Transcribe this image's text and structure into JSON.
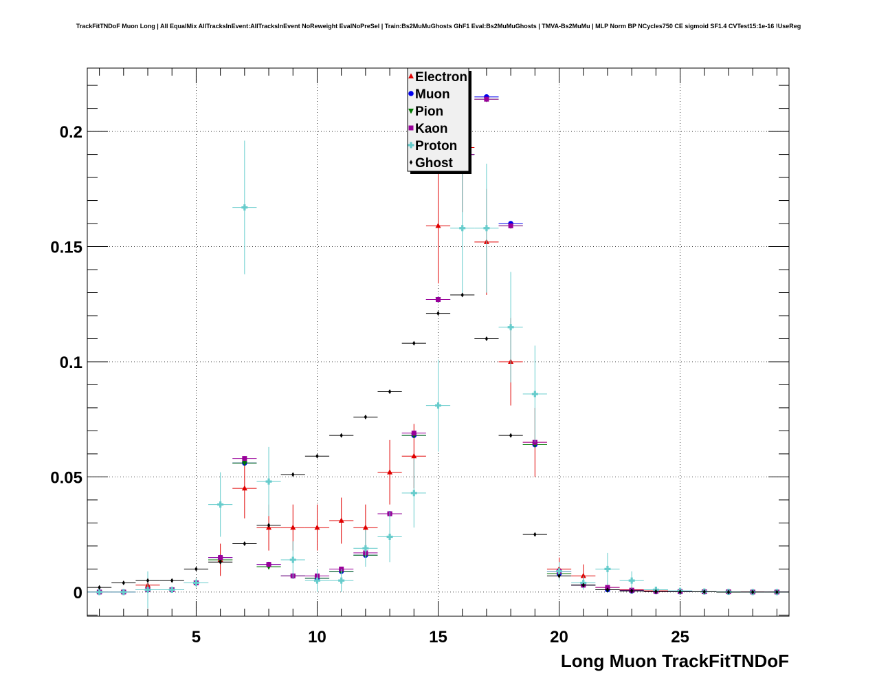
{
  "title": "TrackFitTNDoF Muon Long | All EqualMix AllTracksInEvent:AllTracksInEvent NoReweight EvalNoPreSel | Train:Bs2MuMuGhosts GhF1 Eval:Bs2MuMuGhosts | TMVA-Bs2MuMu | MLP Norm BP NCycles750 CE sigmoid SF1.4 CVTest15:1e-16 !UseReg",
  "chart_data": {
    "type": "scatter",
    "title": "TrackFitTNDoF Muon Long | All EqualMix AllTracksInEvent:AllTracksInEvent NoReweight EvalNoPreSel | Train:Bs2MuMuGhosts GhF1 Eval:Bs2MuMuGhosts | TMVA-Bs2MuMu | MLP Norm BP NCycles750 CE sigmoid SF1.4 CVTest15:1e-16 !UseReg",
    "xlabel": "Long Muon TrackFitTNDoF",
    "ylabel": "",
    "xlim": [
      0.5,
      29.5
    ],
    "ylim": [
      -0.0105,
      0.2275
    ],
    "xticks": [
      5,
      10,
      15,
      20,
      25
    ],
    "xtick_labels": [
      "5",
      "10",
      "15",
      "20",
      "25"
    ],
    "yticks": [
      0,
      0.05,
      0.1,
      0.15,
      0.2
    ],
    "ytick_labels": [
      "0",
      "0.05",
      "0.1",
      "0.15",
      "0.2"
    ],
    "grid": true,
    "legend_position": "top-center",
    "x": [
      1,
      2,
      3,
      4,
      5,
      6,
      7,
      8,
      9,
      10,
      11,
      12,
      13,
      14,
      15,
      16,
      17,
      18,
      19,
      20,
      21,
      22,
      23,
      24,
      25,
      26,
      27,
      28,
      29
    ],
    "series": [
      {
        "name": "Electron",
        "color": "#e00000",
        "marker": "triangle-up",
        "values": [
          0,
          0,
          0.003,
          0.001,
          0.004,
          0.014,
          0.045,
          0.028,
          0.028,
          0.028,
          0.031,
          0.028,
          0.052,
          0.059,
          0.159,
          0.193,
          0.152,
          0.1,
          0.065,
          0.01,
          0.007,
          0.002,
          0.001,
          0.0005,
          0.0003,
          0.0002,
          0.0001,
          0.0001,
          0
        ],
        "errors": [
          0,
          0,
          0.003,
          0.001,
          0.002,
          0.007,
          0.013,
          0.01,
          0.01,
          0.01,
          0.01,
          0.01,
          0.014,
          0.014,
          0.025,
          0.028,
          0.023,
          0.019,
          0.015,
          0.005,
          0.005,
          0.002,
          0.001,
          0.0005,
          0.0003,
          0.0002,
          0.0001,
          0.0001,
          0
        ]
      },
      {
        "name": "Muon",
        "color": "#0000ee",
        "marker": "circle",
        "values": [
          0,
          0,
          0.001,
          0.001,
          0.004,
          0.015,
          0.056,
          0.012,
          0.007,
          0.006,
          0.009,
          0.016,
          0.034,
          0.068,
          0.127,
          0.19,
          0.215,
          0.16,
          0.064,
          0.008,
          0.003,
          0.001,
          0.0005,
          0.0002,
          0.0001,
          0.0001,
          0,
          0,
          0
        ],
        "errors": [
          0,
          0,
          0.0005,
          0.0005,
          0.0005,
          0.001,
          0.001,
          0.001,
          0.0005,
          0.0005,
          0.0005,
          0.001,
          0.001,
          0.001,
          0.001,
          0.001,
          0.001,
          0.001,
          0.001,
          0.0005,
          0.0005,
          0.0003,
          0.0002,
          0.0001,
          0.0001,
          0.0001,
          0,
          0,
          0
        ]
      },
      {
        "name": "Pion",
        "color": "#007700",
        "marker": "triangle-down",
        "values": [
          0,
          0,
          0.001,
          0.001,
          0.004,
          0.014,
          0.056,
          0.011,
          0.007,
          0.006,
          0.009,
          0.016,
          0.034,
          0.068,
          0.127,
          0.19,
          0.214,
          0.159,
          0.064,
          0.008,
          0.003,
          0.001,
          0.0005,
          0.0002,
          0.0001,
          0.0001,
          0,
          0,
          0
        ],
        "errors": [
          0,
          0,
          0.0005,
          0.0005,
          0.0005,
          0.001,
          0.001,
          0.001,
          0.0005,
          0.0005,
          0.0005,
          0.001,
          0.001,
          0.001,
          0.001,
          0.001,
          0.001,
          0.001,
          0.001,
          0.0005,
          0.0005,
          0.0003,
          0.0002,
          0.0001,
          0.0001,
          0.0001,
          0,
          0,
          0
        ]
      },
      {
        "name": "Kaon",
        "color": "#990099",
        "marker": "square",
        "values": [
          0,
          0,
          0.001,
          0.001,
          0.004,
          0.015,
          0.058,
          0.012,
          0.007,
          0.007,
          0.01,
          0.017,
          0.034,
          0.069,
          0.127,
          0.19,
          0.214,
          0.159,
          0.065,
          0.009,
          0.003,
          0.002,
          0.0008,
          0.0003,
          0.0002,
          0.0001,
          0.0001,
          0,
          0
        ],
        "errors": [
          0,
          0,
          0.0005,
          0.0005,
          0.0005,
          0.001,
          0.001,
          0.001,
          0.0005,
          0.0005,
          0.0005,
          0.001,
          0.001,
          0.001,
          0.001,
          0.001,
          0.001,
          0.001,
          0.001,
          0.0005,
          0.0005,
          0.0003,
          0.0002,
          0.0001,
          0.0001,
          0.0001,
          0.0001,
          0,
          0
        ]
      },
      {
        "name": "Proton",
        "color": "#66cccc",
        "marker": "cross",
        "values": [
          0,
          0,
          0.001,
          0.001,
          0.004,
          0.038,
          0.167,
          0.048,
          0.014,
          0.005,
          0.005,
          0.019,
          0.024,
          0.043,
          0.081,
          0.158,
          0.158,
          0.115,
          0.086,
          0.009,
          0.004,
          0.01,
          0.005,
          0.001,
          0.0005,
          0.0002,
          0.0001,
          0,
          0
        ],
        "errors": [
          0,
          0,
          0.008,
          0.001,
          0.002,
          0.014,
          0.029,
          0.015,
          0.008,
          0.005,
          0.005,
          0.008,
          0.011,
          0.015,
          0.02,
          0.028,
          0.028,
          0.024,
          0.021,
          0.004,
          0.003,
          0.007,
          0.004,
          0.001,
          0.0005,
          0.0002,
          0.0001,
          0,
          0
        ]
      },
      {
        "name": "Ghost",
        "color": "#000000",
        "marker": "diamond",
        "values": [
          0.002,
          0.004,
          0.005,
          0.005,
          0.01,
          0.013,
          0.021,
          0.029,
          0.051,
          0.059,
          0.068,
          0.076,
          0.087,
          0.108,
          0.121,
          0.129,
          0.11,
          0.068,
          0.025,
          0.007,
          0.003,
          0.001,
          0.0005,
          0.0002,
          0.0001,
          0.0001,
          0,
          0,
          0
        ],
        "errors": [
          0,
          0,
          0,
          0,
          0,
          0,
          0,
          0,
          0,
          0,
          0,
          0,
          0,
          0,
          0,
          0,
          0,
          0,
          0,
          0,
          0,
          0,
          0,
          0,
          0,
          0,
          0,
          0,
          0
        ]
      }
    ]
  }
}
